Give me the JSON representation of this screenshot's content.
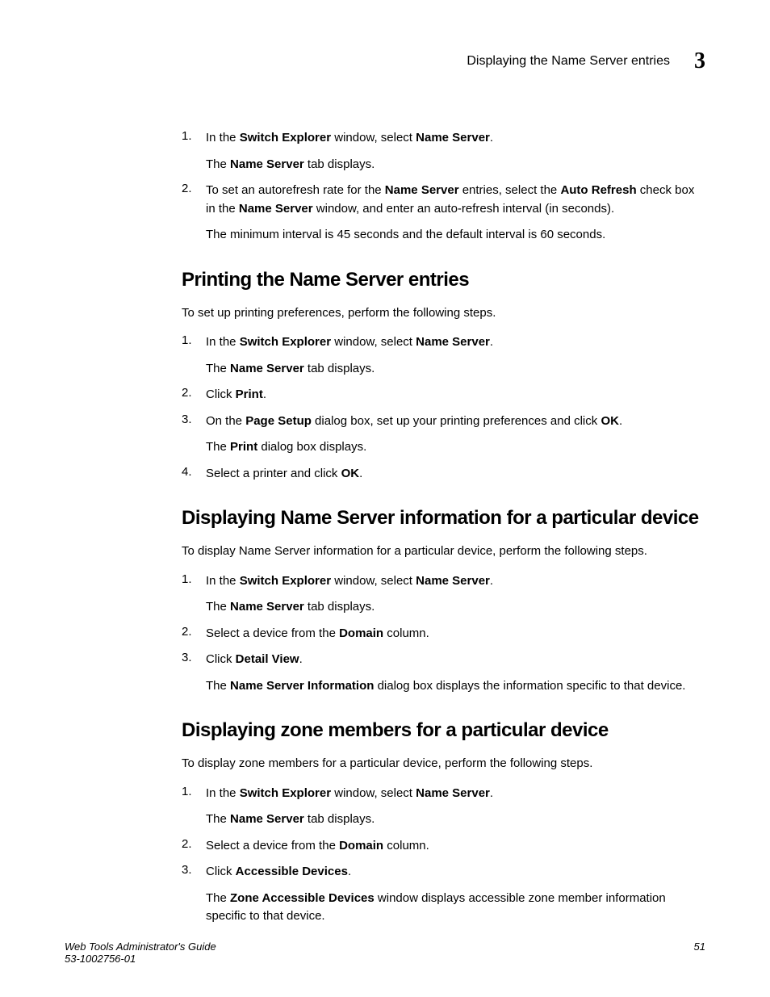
{
  "header": {
    "title": "Displaying the Name Server entries",
    "chapter": "3"
  },
  "section0": {
    "items": [
      {
        "num": "1.",
        "line1_a": "In the ",
        "line1_b": "Switch Explorer",
        "line1_c": " window, select ",
        "line1_d": "Name Server",
        "line1_e": ".",
        "line2_a": "The ",
        "line2_b": "Name Server",
        "line2_c": " tab displays."
      },
      {
        "num": "2.",
        "line1_a": "To set an autorefresh rate for the ",
        "line1_b": "Name Server",
        "line1_c": " entries, select the ",
        "line1_d": "Auto Refresh",
        "line1_e": " check box in the ",
        "line1_f": "Name Server",
        "line1_g": " window, and enter an auto-refresh interval (in seconds).",
        "line2": "The minimum interval is 45 seconds and the default interval is 60 seconds."
      }
    ]
  },
  "section1": {
    "heading": "Printing the Name Server entries",
    "intro": "To set up printing preferences, perform the following steps.",
    "items": [
      {
        "num": "1.",
        "line1_a": "In the ",
        "line1_b": "Switch Explorer",
        "line1_c": " window, select ",
        "line1_d": "Name Server",
        "line1_e": ".",
        "line2_a": "The ",
        "line2_b": "Name Server",
        "line2_c": " tab displays."
      },
      {
        "num": "2.",
        "line1_a": "Click ",
        "line1_b": "Print",
        "line1_c": "."
      },
      {
        "num": "3.",
        "line1_a": "On the ",
        "line1_b": "Page Setup",
        "line1_c": " dialog box, set up your printing preferences and click ",
        "line1_d": "OK",
        "line1_e": ".",
        "line2_a": "The ",
        "line2_b": "Print",
        "line2_c": " dialog box displays."
      },
      {
        "num": "4.",
        "line1_a": "Select a printer and click ",
        "line1_b": "OK",
        "line1_c": "."
      }
    ]
  },
  "section2": {
    "heading": "Displaying Name Server information for a particular device",
    "intro": "To display Name Server information for a particular device, perform the following steps.",
    "items": [
      {
        "num": "1.",
        "line1_a": "In the ",
        "line1_b": "Switch Explorer",
        "line1_c": " window, select ",
        "line1_d": "Name Server",
        "line1_e": ".",
        "line2_a": "The ",
        "line2_b": "Name Server",
        "line2_c": " tab displays."
      },
      {
        "num": "2.",
        "line1_a": "Select a device from the ",
        "line1_b": "Domain",
        "line1_c": " column."
      },
      {
        "num": "3.",
        "line1_a": "Click ",
        "line1_b": "Detail View",
        "line1_c": ".",
        "line2_a": "The ",
        "line2_b": "Name Server Information",
        "line2_c": " dialog box displays the information specific to that device."
      }
    ]
  },
  "section3": {
    "heading": "Displaying zone members for a particular device",
    "intro": "To display zone members for a particular device, perform the following steps.",
    "items": [
      {
        "num": "1.",
        "line1_a": "In the ",
        "line1_b": "Switch Explorer",
        "line1_c": " window, select ",
        "line1_d": "Name Server",
        "line1_e": ".",
        "line2_a": "The ",
        "line2_b": "Name Server",
        "line2_c": " tab displays."
      },
      {
        "num": "2.",
        "line1_a": "Select a device from the ",
        "line1_b": "Domain",
        "line1_c": " column."
      },
      {
        "num": "3.",
        "line1_a": "Click ",
        "line1_b": "Accessible Devices",
        "line1_c": ".",
        "line2_a": "The ",
        "line2_b": "Zone Accessible Devices",
        "line2_c": " window displays accessible zone member information specific to that device."
      }
    ]
  },
  "footer": {
    "guide": "Web Tools Administrator's Guide",
    "docnum": "53-1002756-01",
    "page": "51"
  }
}
